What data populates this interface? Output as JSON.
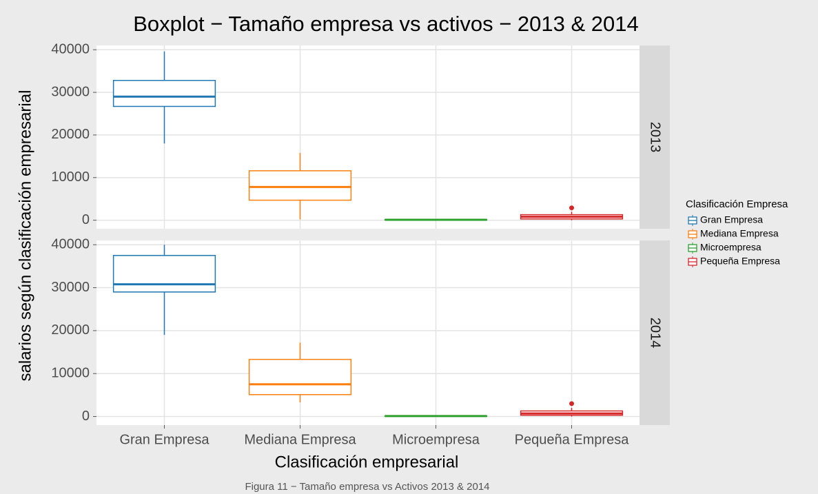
{
  "chart_data": {
    "type": "box",
    "title": "Boxplot − Tamaño empresa vs activos − 2013 & 2014",
    "x_label": "Clasificación empresarial",
    "y_label": "salarios según clasificación empresarial",
    "legend_title": "Clasificación Empresa",
    "categories": [
      "Gran Empresa",
      "Mediana Empresa",
      "Microempresa",
      "Pequeña Empresa"
    ],
    "groups": [
      {
        "name": "Gran Empresa",
        "color": "#1f77b4"
      },
      {
        "name": "Mediana Empresa",
        "color": "#ff7f0e"
      },
      {
        "name": "Microempresa",
        "color": "#2ca02c"
      },
      {
        "name": "Pequeña Empresa",
        "color": "#d62728"
      }
    ],
    "facets": [
      {
        "label": "2013",
        "boxes": [
          {
            "min": 18000,
            "q1": 26700,
            "median": 29000,
            "q3": 32800,
            "max": 39600,
            "outliers": []
          },
          {
            "min": 200,
            "q1": 4700,
            "median": 7800,
            "q3": 11600,
            "max": 15800,
            "outliers": []
          },
          {
            "min": 0,
            "q1": 50,
            "median": 100,
            "q3": 150,
            "max": 250,
            "outliers": []
          },
          {
            "min": 0,
            "q1": 300,
            "median": 800,
            "q3": 1300,
            "max": 2000,
            "outliers": [
              2900
            ]
          }
        ]
      },
      {
        "label": "2014",
        "boxes": [
          {
            "min": 19000,
            "q1": 29000,
            "median": 30800,
            "q3": 37500,
            "max": 40000,
            "outliers": []
          },
          {
            "min": 3300,
            "q1": 5100,
            "median": 7500,
            "q3": 13300,
            "max": 17200,
            "outliers": []
          },
          {
            "min": 0,
            "q1": 50,
            "median": 100,
            "q3": 150,
            "max": 250,
            "outliers": []
          },
          {
            "min": 0,
            "q1": 300,
            "median": 700,
            "q3": 1300,
            "max": 2000,
            "outliers": [
              3000
            ]
          }
        ]
      }
    ],
    "ylim": [
      -2000,
      41000
    ],
    "yticks": [
      0,
      10000,
      20000,
      30000,
      40000
    ],
    "grid": true
  },
  "caption": "Figura 11 − Tamaño empresa vs Activos 2013 & 2014"
}
